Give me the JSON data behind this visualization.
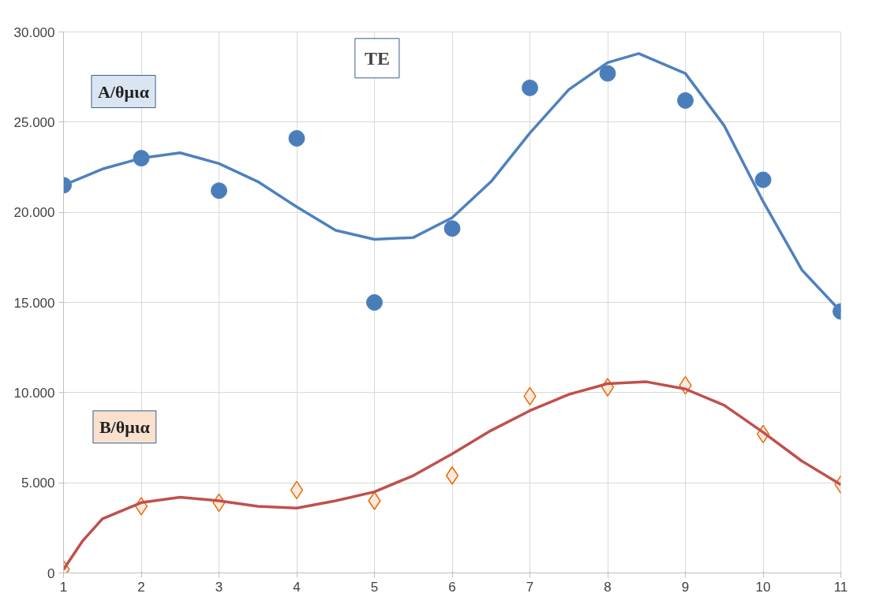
{
  "chart_data": {
    "type": "scatter",
    "title": "TE",
    "x": [
      1,
      2,
      3,
      4,
      5,
      6,
      7,
      8,
      9,
      10,
      11
    ],
    "series": [
      {
        "name": "A/θμια",
        "marker": "circle",
        "color": "#4a7ebb",
        "values": [
          21500,
          23000,
          21200,
          24100,
          15000,
          19100,
          26900,
          27700,
          26200,
          21800,
          14500
        ]
      },
      {
        "name": "B/θμια",
        "marker": "diamond",
        "color": "#e46c0a",
        "values": [
          200,
          3700,
          3900,
          4600,
          4000,
          5400,
          9800,
          10300,
          10400,
          7700,
          4900
        ]
      },
      {
        "type": "line",
        "color": "#4f81bd",
        "x": [
          1,
          1.5,
          2,
          2.5,
          3,
          3.5,
          4,
          4.5,
          5,
          5.5,
          6,
          6.5,
          7,
          7.5,
          8,
          8.4,
          9,
          9.5,
          10,
          10.5,
          11
        ],
        "values": [
          21500,
          22400,
          23000,
          23300,
          22700,
          21700,
          20300,
          19000,
          18500,
          18600,
          19700,
          21700,
          24400,
          26800,
          28300,
          28800,
          27700,
          24800,
          20600,
          16800,
          14500
        ]
      },
      {
        "type": "line",
        "color": "#c0504d",
        "x": [
          1,
          1.25,
          1.5,
          2,
          2.5,
          3,
          3.5,
          4,
          4.5,
          5,
          5.5,
          6,
          6.5,
          7,
          7.5,
          8,
          8.5,
          9,
          9.5,
          10,
          10.5,
          11
        ],
        "values": [
          200,
          1800,
          3000,
          3900,
          4200,
          4000,
          3700,
          3600,
          4000,
          4500,
          5400,
          6600,
          7900,
          9000,
          9900,
          10500,
          10600,
          10200,
          9300,
          7800,
          6200,
          4900
        ]
      }
    ],
    "xlim": [
      1,
      11
    ],
    "xticks": [
      1,
      2,
      3,
      4,
      5,
      6,
      7,
      8,
      9,
      10,
      11
    ],
    "ylim": [
      0,
      30000
    ],
    "yticks": [
      0,
      {
        "value": 5000,
        "label": "5.000"
      },
      {
        "value": 10000,
        "label": "10.000"
      },
      {
        "value": 15000,
        "label": "15.000"
      },
      {
        "value": 20000,
        "label": "20.000"
      },
      {
        "value": 25000,
        "label": "25.000"
      },
      {
        "value": 30000,
        "label": "30.000"
      }
    ],
    "grid": true
  }
}
